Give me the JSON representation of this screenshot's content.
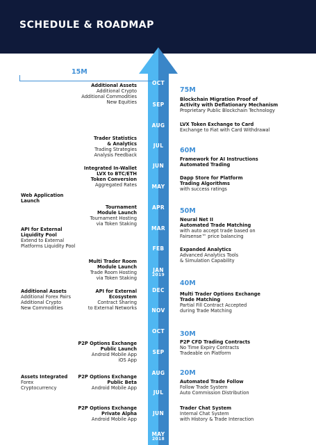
{
  "header": {
    "title": "SCHEDULE & ROADMAP"
  },
  "colors": {
    "header_bg": "#0f1a3a",
    "arrow_light": "#4fb7f2",
    "arrow_dark": "#3a86c8",
    "accent": "#3f8fd6"
  },
  "months": [
    {
      "label": "OCT",
      "year": ""
    },
    {
      "label": "SEP",
      "year": ""
    },
    {
      "label": "AUG",
      "year": ""
    },
    {
      "label": "JUL",
      "year": ""
    },
    {
      "label": "JUN",
      "year": ""
    },
    {
      "label": "MAY",
      "year": ""
    },
    {
      "label": "APR",
      "year": ""
    },
    {
      "label": "MAR",
      "year": ""
    },
    {
      "label": "FEB",
      "year": ""
    },
    {
      "label": "JAN",
      "year": "2019"
    },
    {
      "label": "DEC",
      "year": ""
    },
    {
      "label": "NOV",
      "year": ""
    },
    {
      "label": "OCT",
      "year": ""
    },
    {
      "label": "SEP",
      "year": ""
    },
    {
      "label": "AUG",
      "year": ""
    },
    {
      "label": "JUL",
      "year": ""
    },
    {
      "label": "JUN",
      "year": ""
    },
    {
      "label": "MAY",
      "year": "2018"
    }
  ],
  "left_milestone": "15M",
  "left": [
    {
      "head": "Additional Assets",
      "lines": [
        "Additional Crypto",
        "Additional Commodities",
        "New Equities"
      ]
    },
    {
      "head": "Trader Statistics\n& Analytics",
      "lines": [
        "Trading Strategies",
        "Analysis Feedback"
      ]
    },
    {
      "head": "Integrated In-Wallet\nLVX to BTC/ETH\nToken Conversion",
      "lines": [
        "Aggregated Rates"
      ]
    },
    {
      "head": "Web Application\nLaunch",
      "lines": []
    },
    {
      "head": "Tournament\nModule Launch",
      "lines": [
        "Tournament Hosting",
        "via Token Staking"
      ]
    },
    {
      "head": "API for External\nLiquidity Pool",
      "lines": [
        "Extend to External",
        "Platforms Liquidity Pool"
      ]
    },
    {
      "head": "Multi Trader Room\nModule Launch",
      "lines": [
        "Trade Room Hosting",
        "via Token Staking"
      ]
    },
    {
      "head": "Additional Assets",
      "lines": [
        "Additional Forex Pairs",
        "Additional Crypto",
        "New Commodities"
      ]
    },
    {
      "head": "API for External\nEcosystem",
      "lines": [
        "Contract Sharing",
        "to External Networks"
      ]
    },
    {
      "head": "P2P Options Exchange\nPublic Launch",
      "lines": [
        "Android Mobile App",
        "iOS App"
      ]
    },
    {
      "head": "Assets Integrated",
      "lines": [
        "Forex",
        "Cryptocurrency"
      ]
    },
    {
      "head": "P2P Options Exchange\nPublic Beta",
      "lines": [
        "Android Mobile App"
      ]
    },
    {
      "head": "P2P Options Exchange\nPrivate Alpha",
      "lines": [
        "Android Mobile App"
      ]
    }
  ],
  "right_milestones": [
    "75M",
    "60M",
    "50M",
    "40M",
    "30M",
    "20M"
  ],
  "right": [
    {
      "head": "Blockchain Migration Proof of\nActivity with Deflationary Mechanism",
      "lines": [
        "Proprietary Public Blockchain Technology"
      ]
    },
    {
      "head": "LVX Token Exchange to Card",
      "lines": [
        "Exchange to Fiat with Card Withdrawal"
      ]
    },
    {
      "head": "Framework for AI Instructions\nAutomated Trading",
      "lines": []
    },
    {
      "head": "Dapp Store for Platform\nTrading Algorithms",
      "lines": [
        "with success ratings"
      ]
    },
    {
      "head": "Neural Net II\nAutomated Trade Matching",
      "lines": [
        "with auto accept trade based on",
        "Fairsense™ price balancing"
      ]
    },
    {
      "head": "Expanded Analytics",
      "lines": [
        "Advanced Analytics Tools",
        "& Simulation Capability"
      ]
    },
    {
      "head": "Multi Trader Options Exchange\nTrade Matching",
      "lines": [
        "Partial Fill Contract Accepted",
        "during Trade Matching"
      ]
    },
    {
      "head": "P2P CFD Trading Contracts",
      "lines": [
        "No Time Expiry Contracts",
        "Tradeable on Platform"
      ]
    },
    {
      "head": "Automated Trade Follow",
      "lines": [
        "Follow Trade System",
        "Auto Commission Distribution"
      ]
    },
    {
      "head": "Trader Chat System",
      "lines": [
        "Internal Chat System",
        "with History & Trade Interaction"
      ]
    }
  ]
}
